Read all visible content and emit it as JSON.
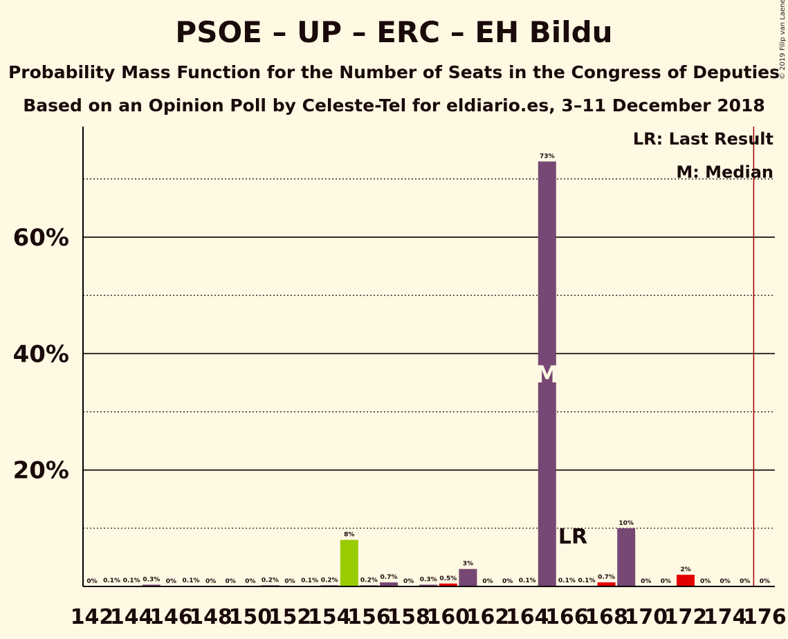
{
  "title": "PSOE – UP – ERC – EH Bildu",
  "subtitle1": "Probability Mass Function for the Number of Seats in the Congress of Deputies",
  "subtitle2": "Based on an Opinion Poll by Celeste-Tel for eldiario.es, 3–11 December 2018",
  "copyright": "© 2019 Filip van Laenen",
  "legend": {
    "lr": "LR: Last Result",
    "m": "M: Median"
  },
  "markers": {
    "lr_text": "LR",
    "m_text": "M"
  },
  "colors": {
    "background": "#FFF8E3",
    "default": "#764873",
    "median": "#764873",
    "last_result": "#E30000",
    "highlight": "#99CC00",
    "majority_line": "#990000"
  },
  "chart_data": {
    "type": "bar",
    "xlabel": "",
    "ylabel": "",
    "ylim": [
      0,
      79
    ],
    "yticks": [
      {
        "value": 20,
        "label": "20%"
      },
      {
        "value": 40,
        "label": "40%"
      },
      {
        "value": 60,
        "label": "60%"
      }
    ],
    "dotted_gridlines": [
      10,
      30,
      50,
      70
    ],
    "x_tick_labels": [
      142,
      144,
      146,
      148,
      150,
      152,
      154,
      156,
      158,
      160,
      162,
      164,
      166,
      168,
      170,
      172,
      174,
      176
    ],
    "majority_line_at": 176,
    "median_at": 165,
    "last_result_at": 167,
    "bars": [
      {
        "x": 142,
        "value": 0,
        "label": "0%",
        "color_key": "default"
      },
      {
        "x": 143,
        "value": 0.1,
        "label": "0.1%",
        "color_key": "default"
      },
      {
        "x": 144,
        "value": 0.1,
        "label": "0.1%",
        "color_key": "default"
      },
      {
        "x": 145,
        "value": 0.3,
        "label": "0.3%",
        "color_key": "default"
      },
      {
        "x": 146,
        "value": 0,
        "label": "0%",
        "color_key": "default"
      },
      {
        "x": 147,
        "value": 0.1,
        "label": "0.1%",
        "color_key": "default"
      },
      {
        "x": 148,
        "value": 0,
        "label": "0%",
        "color_key": "default"
      },
      {
        "x": 149,
        "value": 0,
        "label": "0%",
        "color_key": "default"
      },
      {
        "x": 150,
        "value": 0,
        "label": "0%",
        "color_key": "default"
      },
      {
        "x": 151,
        "value": 0.2,
        "label": "0.2%",
        "color_key": "default"
      },
      {
        "x": 152,
        "value": 0,
        "label": "0%",
        "color_key": "default"
      },
      {
        "x": 153,
        "value": 0.1,
        "label": "0.1%",
        "color_key": "default"
      },
      {
        "x": 154,
        "value": 0.2,
        "label": "0.2%",
        "color_key": "default"
      },
      {
        "x": 155,
        "value": 8,
        "label": "8%",
        "color_key": "highlight"
      },
      {
        "x": 156,
        "value": 0.2,
        "label": "0.2%",
        "color_key": "default"
      },
      {
        "x": 157,
        "value": 0.7,
        "label": "0.7%",
        "color_key": "default"
      },
      {
        "x": 158,
        "value": 0,
        "label": "0%",
        "color_key": "default"
      },
      {
        "x": 159,
        "value": 0.3,
        "label": "0.3%",
        "color_key": "default"
      },
      {
        "x": 160,
        "value": 0.5,
        "label": "0.5%",
        "color_key": "last_result"
      },
      {
        "x": 161,
        "value": 3,
        "label": "3%",
        "color_key": "default"
      },
      {
        "x": 162,
        "value": 0,
        "label": "0%",
        "color_key": "default"
      },
      {
        "x": 163,
        "value": 0,
        "label": "0%",
        "color_key": "default"
      },
      {
        "x": 164,
        "value": 0.1,
        "label": "0.1%",
        "color_key": "default"
      },
      {
        "x": 165,
        "value": 73,
        "label": "73%",
        "color_key": "median"
      },
      {
        "x": 166,
        "value": 0.1,
        "label": "0.1%",
        "color_key": "default"
      },
      {
        "x": 167,
        "value": 0.1,
        "label": "0.1%",
        "color_key": "default"
      },
      {
        "x": 168,
        "value": 0.7,
        "label": "0.7%",
        "color_key": "last_result"
      },
      {
        "x": 169,
        "value": 10,
        "label": "10%",
        "color_key": "default"
      },
      {
        "x": 170,
        "value": 0,
        "label": "0%",
        "color_key": "default"
      },
      {
        "x": 171,
        "value": 0,
        "label": "0%",
        "color_key": "default"
      },
      {
        "x": 172,
        "value": 2,
        "label": "2%",
        "color_key": "last_result"
      },
      {
        "x": 173,
        "value": 0,
        "label": "0%",
        "color_key": "default"
      },
      {
        "x": 174,
        "value": 0,
        "label": "0%",
        "color_key": "default"
      },
      {
        "x": 175,
        "value": 0,
        "label": "0%",
        "color_key": "default"
      },
      {
        "x": 176,
        "value": 0,
        "label": "0%",
        "color_key": "default"
      }
    ]
  }
}
